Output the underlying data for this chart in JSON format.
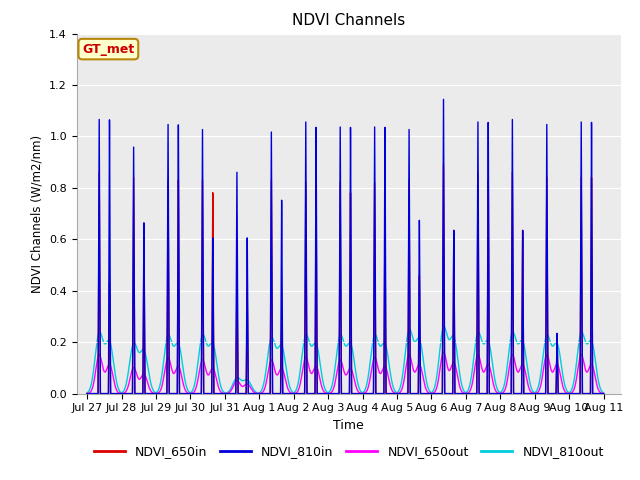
{
  "title": "NDVI Channels",
  "xlabel": "Time",
  "ylabel": "NDVI Channels (W/m2/nm)",
  "ylim": [
    0.0,
    1.4
  ],
  "bg_color": "#ebebeb",
  "annotation_text": "GT_met",
  "annotation_color": "#cc0000",
  "annotation_bg": "#ffffcc",
  "annotation_border": "#b8860b",
  "legend_labels": [
    "NDVI_650in",
    "NDVI_810in",
    "NDVI_650out",
    "NDVI_810out"
  ],
  "legend_colors": [
    "#dd0000",
    "#0000dd",
    "#ff00ff",
    "#00ccdd"
  ],
  "xtick_labels": [
    "Jul 27",
    "Jul 28",
    "Jul 29",
    "Jul 30",
    "Jul 31",
    "Aug 1",
    "Aug 2",
    "Aug 3",
    "Aug 4",
    "Aug 5",
    "Aug 6",
    "Aug 7",
    "Aug 8",
    "Aug 9",
    "Aug 10",
    "Aug 11"
  ],
  "num_cycles": 15,
  "peak_650in": [
    0.88,
    0.86,
    0.85,
    0.85,
    0.45,
    0.85,
    0.84,
    0.84,
    0.84,
    0.85,
    0.91,
    0.88,
    0.88,
    0.86,
    0.86
  ],
  "peak_810in": [
    1.09,
    0.98,
    1.07,
    1.05,
    0.88,
    1.04,
    1.08,
    1.06,
    1.06,
    1.05,
    1.17,
    1.08,
    1.09,
    1.07,
    1.08
  ],
  "peak2_650in": [
    0.44,
    0.6,
    0.85,
    0.8,
    0.4,
    0.3,
    0.8,
    0.8,
    0.68,
    0.47,
    0.65,
    0.85,
    0.65,
    0.22,
    0.86
  ],
  "peak2_810in": [
    1.09,
    0.68,
    1.07,
    0.62,
    0.62,
    0.77,
    1.06,
    1.06,
    1.06,
    0.69,
    0.65,
    1.08,
    0.65,
    0.24,
    1.08
  ],
  "peak_650out": [
    0.15,
    0.1,
    0.14,
    0.13,
    0.05,
    0.13,
    0.14,
    0.13,
    0.14,
    0.15,
    0.16,
    0.15,
    0.15,
    0.15,
    0.15
  ],
  "peak_810out": [
    0.23,
    0.19,
    0.22,
    0.22,
    0.06,
    0.21,
    0.22,
    0.22,
    0.22,
    0.24,
    0.25,
    0.23,
    0.23,
    0.22,
    0.23
  ]
}
